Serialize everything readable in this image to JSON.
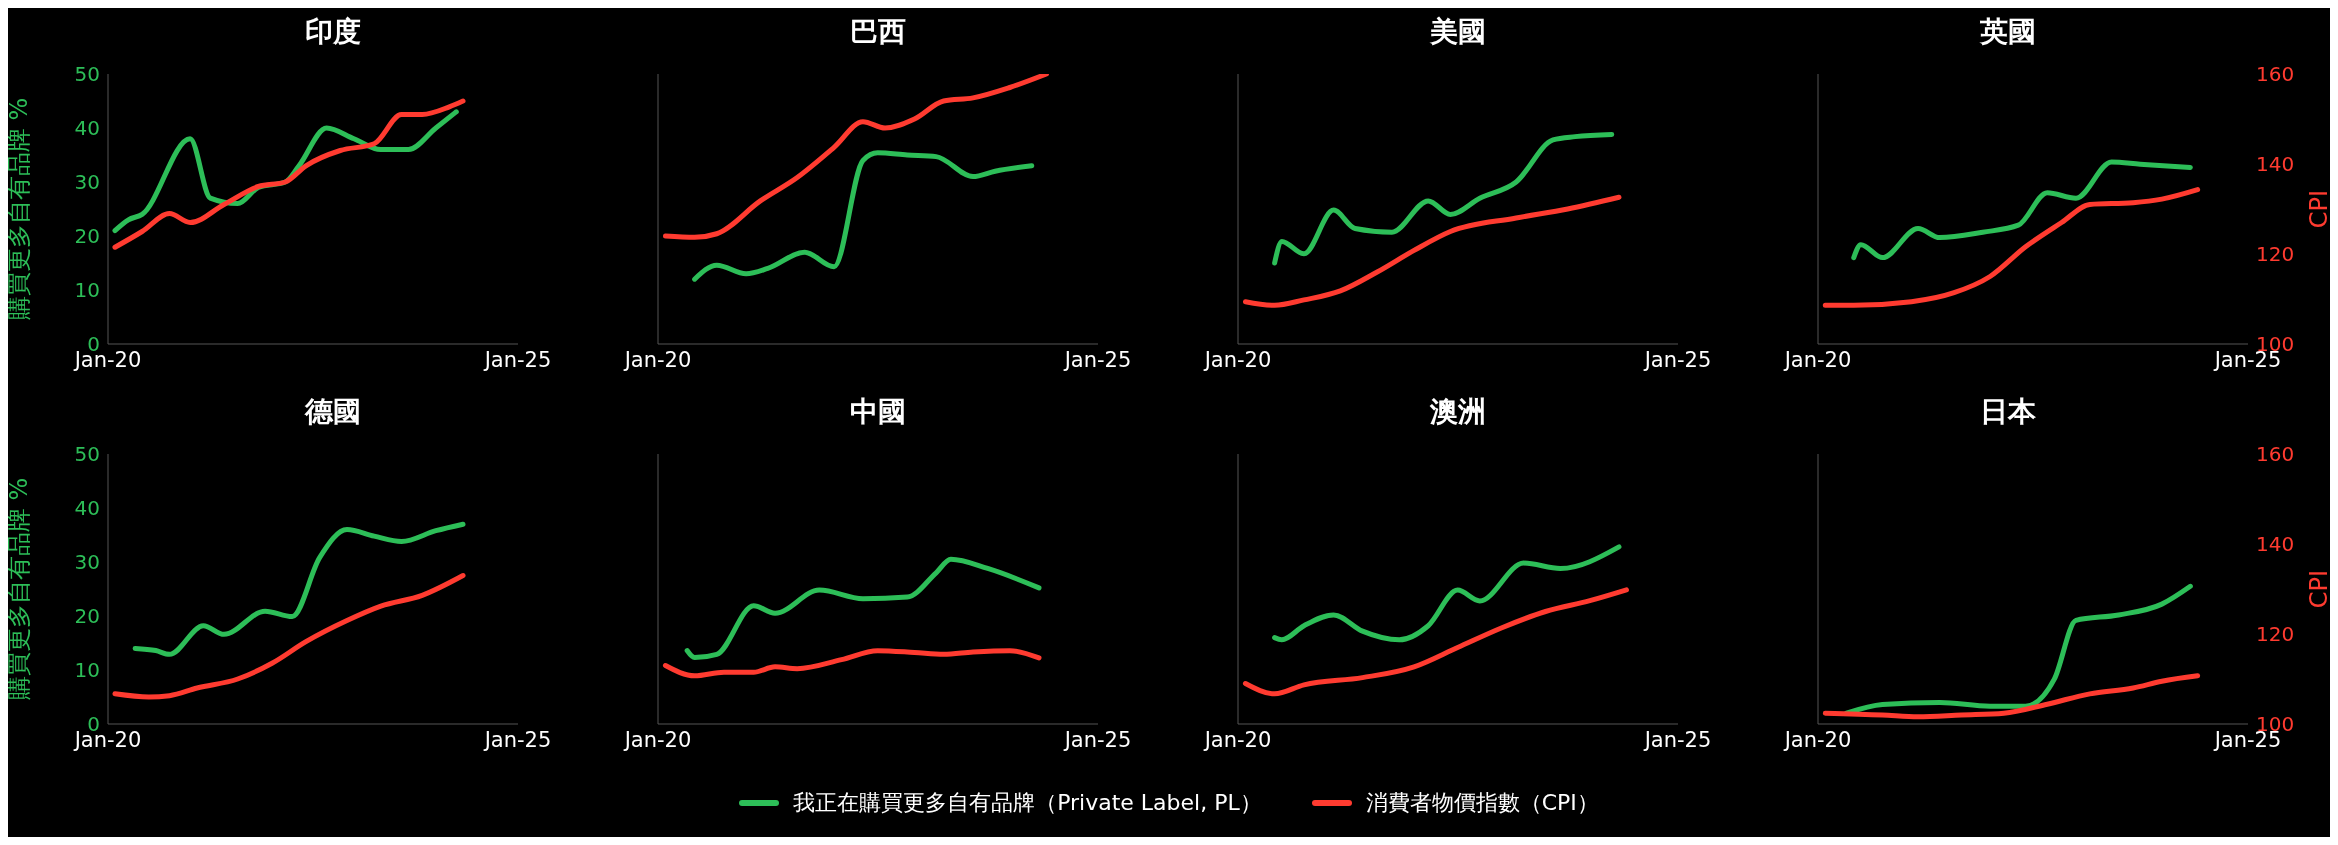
{
  "chart_data": [
    {
      "type": "line",
      "title": "印度",
      "ylabel": "購買更多自有品牌 %",
      "xlim": [
        "2020-01",
        "2025-01"
      ],
      "xticks": [
        {
          "value": "2020-01",
          "label": "Jan-20"
        },
        {
          "value": "2025-01",
          "label": "Jan-25"
        }
      ],
      "ylim": [
        0,
        50
      ],
      "yticks": [
        0,
        10,
        20,
        30,
        40,
        50
      ],
      "y2lim": [
        100,
        160
      ],
      "tick_labels": "xy",
      "grid": false,
      "marker": "none",
      "line_style": "solid",
      "legend": "bottom",
      "series": [
        {
          "name": "我正在購買更多自有品牌（Private Label, PL）",
          "color": "#2dbe58",
          "x": [
            "2020-02",
            "2020-04",
            "2020-06",
            "2021-01",
            "2021-04",
            "2021-08",
            "2021-11",
            "2022-03",
            "2022-05",
            "2022-09",
            "2023-01",
            "2023-05",
            "2023-09",
            "2024-01",
            "2024-04"
          ],
          "values": [
            21,
            23,
            24,
            38,
            27,
            26,
            29,
            30,
            33,
            40,
            38,
            36,
            36,
            40,
            43
          ]
        },
        {
          "name": "消費者物價指數（CPI）",
          "color": "#ff3b30",
          "axis": "y2",
          "x": [
            "2020-02",
            "2020-06",
            "2020-10",
            "2021-01",
            "2021-06",
            "2021-11",
            "2022-03",
            "2022-06",
            "2022-11",
            "2023-04",
            "2023-08",
            "2023-11",
            "2024-03",
            "2024-05"
          ],
          "values": [
            121.5,
            125,
            129,
            127,
            131,
            135,
            136,
            139.6,
            143,
            144.5,
            151,
            151,
            152.7,
            154
          ]
        }
      ]
    },
    {
      "type": "line",
      "title": "巴西",
      "xlim": [
        "2020-01",
        "2025-01"
      ],
      "xticks": [
        {
          "value": "2020-01",
          "label": "Jan-20"
        },
        {
          "value": "2025-01",
          "label": "Jan-25"
        }
      ],
      "ylim": [
        0,
        50
      ],
      "y2lim": [
        100,
        160
      ],
      "tick_labels": "x",
      "grid": false,
      "marker": "none",
      "line_style": "solid",
      "series": [
        {
          "color": "#2dbe58",
          "x": [
            "2020-06",
            "2020-09",
            "2021-01",
            "2021-04",
            "2021-09",
            "2022-01",
            "2022-05",
            "2022-07",
            "2022-11",
            "2023-03",
            "2023-08",
            "2023-11",
            "2024-04"
          ],
          "values": [
            12,
            14.6,
            13,
            14,
            17,
            14.3,
            34,
            35.4,
            35,
            34.7,
            31,
            32,
            33
          ]
        },
        {
          "color": "#ff3b30",
          "axis": "y2",
          "x": [
            "2020-02",
            "2020-06",
            "2020-09",
            "2021-03",
            "2021-08",
            "2022-01",
            "2022-05",
            "2022-08",
            "2022-12",
            "2023-04",
            "2023-08",
            "2024-01",
            "2024-06"
          ],
          "values": [
            124,
            123.7,
            124.5,
            131.8,
            137,
            143.7,
            149.4,
            148,
            150,
            154,
            154.7,
            157,
            160
          ]
        }
      ]
    },
    {
      "type": "line",
      "title": "美國",
      "xlim": [
        "2020-01",
        "2025-01"
      ],
      "xticks": [
        {
          "value": "2020-01",
          "label": "Jan-20"
        },
        {
          "value": "2025-01",
          "label": "Jan-25"
        }
      ],
      "ylim": [
        0,
        50
      ],
      "y2lim": [
        100,
        160
      ],
      "tick_labels": "x",
      "grid": false,
      "marker": "none",
      "line_style": "solid",
      "series": [
        {
          "color": "#2dbe58",
          "x": [
            "2020-06",
            "2020-07",
            "2020-10",
            "2021-02",
            "2021-05",
            "2021-10",
            "2022-03",
            "2022-06",
            "2022-10",
            "2023-03",
            "2023-08",
            "2023-11",
            "2024-04"
          ],
          "values": [
            15,
            19,
            16.7,
            24.8,
            21.4,
            20.7,
            26.5,
            24,
            27,
            30,
            37.8,
            38.4,
            38.8
          ]
        },
        {
          "color": "#ff3b30",
          "axis": "y2",
          "x": [
            "2020-02",
            "2020-06",
            "2020-10",
            "2021-03",
            "2021-08",
            "2022-01",
            "2022-06",
            "2023-03",
            "2023-10",
            "2024-05"
          ],
          "values": [
            109.4,
            108.6,
            109.8,
            111.8,
            116,
            120.8,
            125,
            128,
            130,
            132.6
          ]
        }
      ]
    },
    {
      "type": "line",
      "title": "英國",
      "y2label": "CPI",
      "xlim": [
        "2020-01",
        "2025-01"
      ],
      "xticks": [
        {
          "value": "2020-01",
          "label": "Jan-20"
        },
        {
          "value": "2025-01",
          "label": "Jan-25"
        }
      ],
      "ylim": [
        0,
        50
      ],
      "y2lim": [
        100,
        160
      ],
      "y2ticks": [
        100,
        120,
        140,
        160
      ],
      "tick_labels": "xy2",
      "grid": false,
      "marker": "none",
      "line_style": "solid",
      "series": [
        {
          "color": "#2dbe58",
          "x": [
            "2020-06",
            "2020-07",
            "2020-10",
            "2021-03",
            "2021-06",
            "2021-12",
            "2022-05",
            "2022-09",
            "2023-01",
            "2023-06",
            "2023-10",
            "2024-05"
          ],
          "values": [
            16,
            18.4,
            16,
            21.4,
            19.7,
            20.7,
            22,
            28,
            27,
            33.7,
            33.3,
            32.7
          ]
        },
        {
          "color": "#ff3b30",
          "axis": "y2",
          "x": [
            "2020-02",
            "2020-06",
            "2021-02",
            "2021-08",
            "2022-01",
            "2022-06",
            "2022-11",
            "2023-03",
            "2023-09",
            "2024-01",
            "2024-06"
          ],
          "values": [
            108.6,
            108.6,
            109.4,
            111.4,
            115,
            121.6,
            127,
            131,
            131.4,
            132.2,
            134.3
          ]
        }
      ]
    },
    {
      "type": "line",
      "title": "德國",
      "ylabel": "購買更多自有品牌 %",
      "xlim": [
        "2020-01",
        "2025-01"
      ],
      "xticks": [
        {
          "value": "2020-01",
          "label": "Jan-20"
        },
        {
          "value": "2025-01",
          "label": "Jan-25"
        }
      ],
      "ylim": [
        0,
        50
      ],
      "yticks": [
        0,
        10,
        20,
        30,
        40,
        50
      ],
      "y2lim": [
        100,
        160
      ],
      "tick_labels": "xy",
      "grid": false,
      "marker": "none",
      "line_style": "solid",
      "series": [
        {
          "color": "#2dbe58",
          "x": [
            "2020-05",
            "2020-08",
            "2020-10",
            "2021-03",
            "2021-06",
            "2021-12",
            "2022-04",
            "2022-08",
            "2022-12",
            "2023-04",
            "2023-08",
            "2024-01",
            "2024-05"
          ],
          "values": [
            14,
            13.6,
            12.9,
            18.2,
            16.6,
            20.9,
            19.9,
            30.8,
            36,
            34.8,
            33.8,
            35.8,
            37
          ]
        },
        {
          "color": "#ff3b30",
          "axis": "y2",
          "x": [
            "2020-02",
            "2020-07",
            "2020-10",
            "2021-02",
            "2021-08",
            "2022-01",
            "2022-06",
            "2022-12",
            "2023-05",
            "2023-11",
            "2024-05"
          ],
          "values": [
            106.7,
            106,
            106.3,
            108,
            110,
            113.5,
            118.3,
            123,
            126.2,
            128.6,
            133
          ]
        }
      ]
    },
    {
      "type": "line",
      "title": "中國",
      "xlim": [
        "2020-01",
        "2025-01"
      ],
      "xticks": [
        {
          "value": "2020-01",
          "label": "Jan-20"
        },
        {
          "value": "2025-01",
          "label": "Jan-25"
        }
      ],
      "ylim": [
        0,
        50
      ],
      "y2lim": [
        100,
        160
      ],
      "tick_labels": "x",
      "grid": false,
      "marker": "none",
      "line_style": "solid",
      "series": [
        {
          "color": "#2dbe58",
          "x": [
            "2020-05",
            "2020-06",
            "2020-09",
            "2021-02",
            "2021-05",
            "2021-11",
            "2022-05",
            "2022-11",
            "2023-03",
            "2023-05",
            "2023-10",
            "2024-05"
          ],
          "values": [
            13.6,
            12.3,
            12.9,
            21.9,
            20.5,
            24.8,
            23.2,
            23.5,
            28,
            30.5,
            28.8,
            25.2
          ]
        },
        {
          "color": "#ff3b30",
          "axis": "y2",
          "x": [
            "2020-02",
            "2020-06",
            "2020-10",
            "2021-02",
            "2021-05",
            "2021-08",
            "2022-02",
            "2022-07",
            "2022-12",
            "2023-04",
            "2023-08",
            "2024-01",
            "2024-05"
          ],
          "values": [
            113,
            110.7,
            111.5,
            111.5,
            112.7,
            112.3,
            114.3,
            116.3,
            115.9,
            115.5,
            116,
            116.3,
            114.7
          ]
        }
      ]
    },
    {
      "type": "line",
      "title": "澳洲",
      "xlim": [
        "2020-01",
        "2025-01"
      ],
      "xticks": [
        {
          "value": "2020-01",
          "label": "Jan-20"
        },
        {
          "value": "2025-01",
          "label": "Jan-25"
        }
      ],
      "ylim": [
        0,
        50
      ],
      "y2lim": [
        100,
        160
      ],
      "tick_labels": "x",
      "grid": false,
      "marker": "none",
      "line_style": "solid",
      "series": [
        {
          "color": "#2dbe58",
          "x": [
            "2020-06",
            "2020-07",
            "2020-10",
            "2021-02",
            "2021-06",
            "2021-11",
            "2022-03",
            "2022-07",
            "2022-10",
            "2023-04",
            "2023-09",
            "2024-05"
          ],
          "values": [
            16,
            15.6,
            18.2,
            20.2,
            17.2,
            15.6,
            18.2,
            24.8,
            22.8,
            29.8,
            28.8,
            32.8
          ]
        },
        {
          "color": "#ff3b30",
          "axis": "y2",
          "x": [
            "2020-02",
            "2020-06",
            "2020-10",
            "2021-06",
            "2022-01",
            "2022-07",
            "2023-01",
            "2023-07",
            "2024-01",
            "2024-06"
          ],
          "values": [
            109,
            106.7,
            108.7,
            110.3,
            112.7,
            117,
            121.4,
            125,
            127.4,
            129.8
          ]
        }
      ]
    },
    {
      "type": "line",
      "title": "日本",
      "y2label": "CPI",
      "xlim": [
        "2020-01",
        "2025-01"
      ],
      "xticks": [
        {
          "value": "2020-01",
          "label": "Jan-20"
        },
        {
          "value": "2025-01",
          "label": "Jan-25"
        }
      ],
      "ylim": [
        0,
        50
      ],
      "y2lim": [
        100,
        160
      ],
      "y2ticks": [
        100,
        120,
        140,
        160
      ],
      "tick_labels": "xy2",
      "grid": false,
      "marker": "none",
      "line_style": "solid",
      "series": [
        {
          "color": "#2dbe58",
          "x": [
            "2020-05",
            "2020-10",
            "2021-06",
            "2022-01",
            "2022-06",
            "2022-10",
            "2023-01",
            "2023-07",
            "2024-01",
            "2024-05"
          ],
          "values": [
            2,
            3.6,
            4,
            3.3,
            3.3,
            8.3,
            19.2,
            20.2,
            22.2,
            25.5
          ]
        },
        {
          "color": "#ff3b30",
          "axis": "y2",
          "x": [
            "2020-02",
            "2020-10",
            "2021-03",
            "2021-09",
            "2022-03",
            "2022-09",
            "2023-03",
            "2023-09",
            "2024-01",
            "2024-06"
          ],
          "values": [
            102.4,
            102,
            101.6,
            102,
            102.4,
            104.4,
            106.7,
            108,
            109.5,
            110.7
          ]
        }
      ]
    }
  ]
}
